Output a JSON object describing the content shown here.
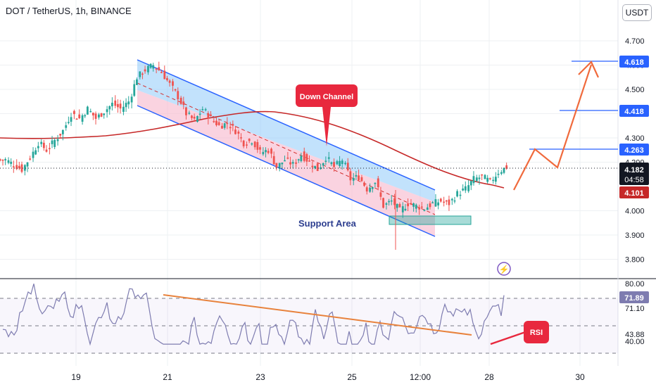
{
  "header": {
    "ticker_title": "DOT / TetherUS, 1h, BINANCE",
    "currency_badge": "USDT"
  },
  "colors": {
    "up": "#26a69a",
    "down": "#ef5350",
    "channel": "#2962ff",
    "ma": "#d32f2f",
    "projection": "#f06a3c",
    "rsi_line": "#7e7cb0",
    "support_box": "#26a69a",
    "callout": "#e8283e",
    "grid": "#eef0f3"
  },
  "price_scale": {
    "ticks": [
      "4.700",
      "4.600",
      "4.500",
      "4.400",
      "4.300",
      "4.200",
      "4.000",
      "3.900",
      "3.800"
    ]
  },
  "rsi_scale": {
    "ticks": [
      "80.00",
      "71.10",
      "43.88",
      "40.00"
    ],
    "current_label": "71.89"
  },
  "time_axis": {
    "labels": [
      "19",
      "21",
      "23",
      "25",
      "12:00",
      "28",
      "30"
    ]
  },
  "price_badges": {
    "current": "4.182",
    "countdown": "04:58",
    "ma_value": "4.101",
    "target1": "4.263",
    "target2": "4.418",
    "target3": "4.618"
  },
  "annotations": {
    "down_channel": "Down Channel",
    "support_area": "Support Area",
    "rsi": "RSI"
  },
  "chart_data": {
    "type": "candlestick",
    "symbol": "DOT / TetherUS",
    "interval": "1h",
    "exchange": "BINANCE",
    "y_range": [
      3.76,
      4.8
    ],
    "current_price": 4.182,
    "moving_average_current": 4.101,
    "targets": [
      4.263,
      4.418,
      4.618
    ],
    "support_area": [
      3.96,
      3.98
    ],
    "rsi_current": 71.89,
    "rsi_levels": [
      80.0,
      71.1,
      43.88,
      40.0
    ],
    "series": [
      {
        "values": [
          4.21,
          4.19,
          4.17,
          4.22,
          4.28,
          4.25,
          4.29,
          4.33,
          4.4,
          4.38,
          4.42,
          4.38,
          4.41,
          4.44,
          4.42,
          4.45,
          4.55,
          4.58,
          4.6,
          4.57,
          4.52,
          4.47,
          4.4,
          4.37,
          4.42,
          4.38,
          4.35,
          4.36,
          4.33,
          4.28,
          4.29,
          4.24,
          4.25,
          4.18,
          4.21,
          4.19,
          4.23,
          4.2,
          4.17,
          4.22,
          4.18,
          4.21,
          4.13,
          4.14,
          4.09,
          4.12,
          4.02,
          4.04,
          4.0,
          4.03,
          4.02,
          4.01,
          4.03,
          4.04,
          4.03,
          4.07,
          4.09,
          4.13,
          4.14,
          4.12,
          4.16,
          4.18
        ]
      }
    ]
  }
}
